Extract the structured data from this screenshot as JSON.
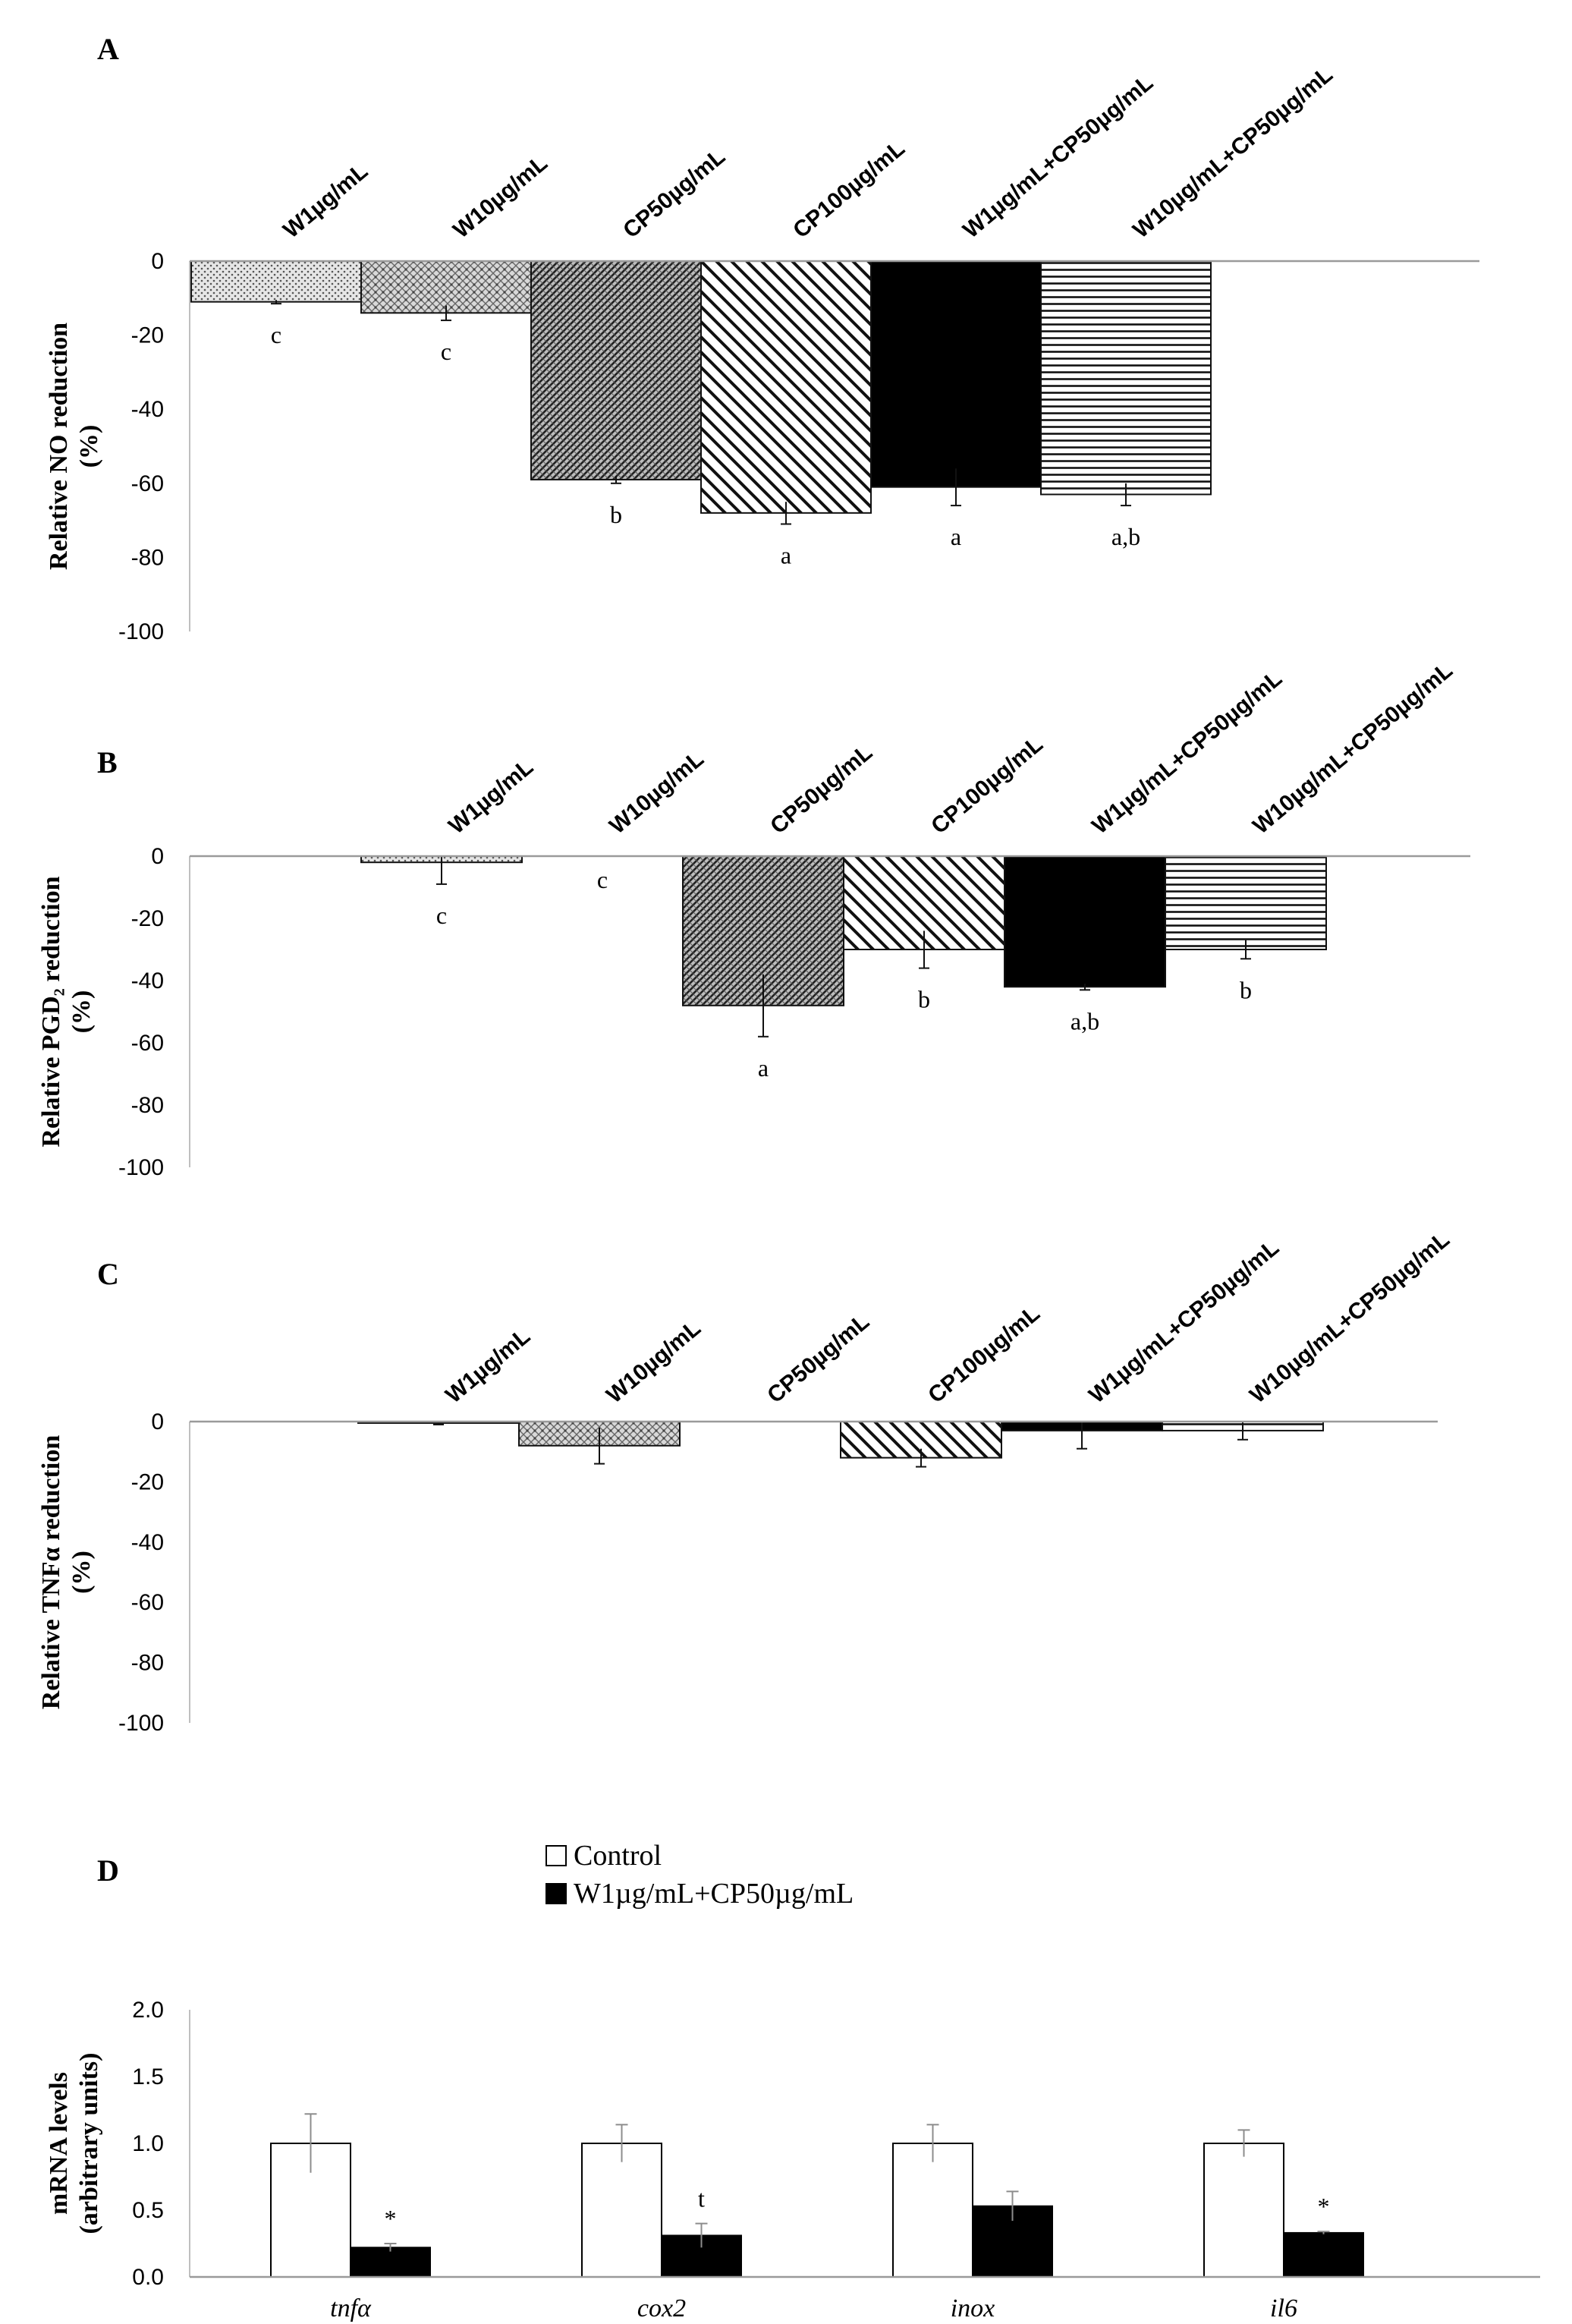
{
  "chart_data": [
    {
      "panel": "A",
      "type": "bar",
      "ylabel": "Relative NO reduction (%)",
      "ylabel_lines": [
        "Relative NO reduction",
        "(%)"
      ],
      "ylim": [
        -100,
        0
      ],
      "yticks": [
        "0",
        "-20",
        "-40",
        "-60",
        "-80",
        "-100"
      ],
      "categories": [
        "W1µg/mL",
        "W10µg/mL",
        "CP50µg/mL",
        "CP100µg/mL",
        "W1µg/mL+CP50µg/mL",
        "W10µg/mL+CP50µg/mL"
      ],
      "values": [
        -11,
        -14,
        -59,
        -68,
        -61,
        -63
      ],
      "errors": [
        0.5,
        2,
        1,
        3,
        5,
        3
      ],
      "significance": [
        "c",
        "c",
        "b",
        "a",
        "a",
        "a,b"
      ],
      "patterns": [
        "dots",
        "crosshatch",
        "diagdense",
        "diagwide",
        "solid",
        "hlines"
      ]
    },
    {
      "panel": "B",
      "type": "bar",
      "ylabel": "Relative PGD2 reduction (%)",
      "ylabel_lines": [
        "Relative PGD₂ reduction",
        "(%)"
      ],
      "ylim": [
        -100,
        0
      ],
      "yticks": [
        "0",
        "-20",
        "-40",
        "-60",
        "-80",
        "-100"
      ],
      "categories": [
        "W1µg/mL",
        "W10µg/mL",
        "CP50µg/mL",
        "CP100µg/mL",
        "W1µg/mL+CP50µg/mL",
        "W10µg/mL+CP50µg/mL"
      ],
      "values": [
        -2,
        0,
        -48,
        -30,
        -42,
        -30
      ],
      "errors": [
        7,
        0,
        10,
        6,
        1,
        3
      ],
      "significance": [
        "c",
        "c",
        "a",
        "b",
        "a,b",
        "b"
      ],
      "patterns": [
        "dots",
        "crosshatch",
        "diagdense",
        "diagwide",
        "solid",
        "hlines"
      ]
    },
    {
      "panel": "C",
      "type": "bar",
      "ylabel": "Relative TNFα reduction (%)",
      "ylabel_lines": [
        "Relative TNFα reduction",
        "(%)"
      ],
      "ylim": [
        -100,
        0
      ],
      "yticks": [
        "0",
        "-20",
        "-40",
        "-60",
        "-80",
        "-100"
      ],
      "categories": [
        "W1µg/mL",
        "W10µg/mL",
        "CP50µg/mL",
        "CP100µg/mL",
        "W1µg/mL+CP50µg/mL",
        "W10µg/mL+CP50µg/mL"
      ],
      "values": [
        -0.5,
        -8,
        0,
        -12,
        -3,
        -3
      ],
      "errors": [
        0.5,
        6,
        0,
        3,
        6,
        3
      ],
      "significance": [
        "",
        "",
        "",
        "",
        "",
        ""
      ],
      "patterns": [
        "dots",
        "crosshatch",
        "diagdense",
        "diagwide",
        "solid",
        "hlines"
      ]
    },
    {
      "panel": "D",
      "type": "bar",
      "ylabel": "mRNA levels (arbitrary units)",
      "ylabel_lines": [
        "mRNA levels",
        "(arbitrary units)"
      ],
      "ylim": [
        0,
        2.0
      ],
      "yticks": [
        "2.0",
        "1.5",
        "1.0",
        "0.5",
        "0.0"
      ],
      "categories": [
        "tnfα",
        "cox2",
        "inox",
        "il6"
      ],
      "series": [
        {
          "name": "Control",
          "values": [
            1.0,
            1.0,
            1.0,
            1.0
          ],
          "errors": [
            0.22,
            0.14,
            0.14,
            0.1
          ]
        },
        {
          "name": "W1µg/mL+CP50µg/mL",
          "values": [
            0.22,
            0.31,
            0.53,
            0.33
          ],
          "errors": [
            0.03,
            0.09,
            0.11,
            0.01
          ]
        }
      ],
      "significance": [
        "*",
        "t",
        "",
        "*"
      ],
      "legend": [
        "Control",
        "W1µg/mL+CP50µg/mL"
      ]
    }
  ]
}
